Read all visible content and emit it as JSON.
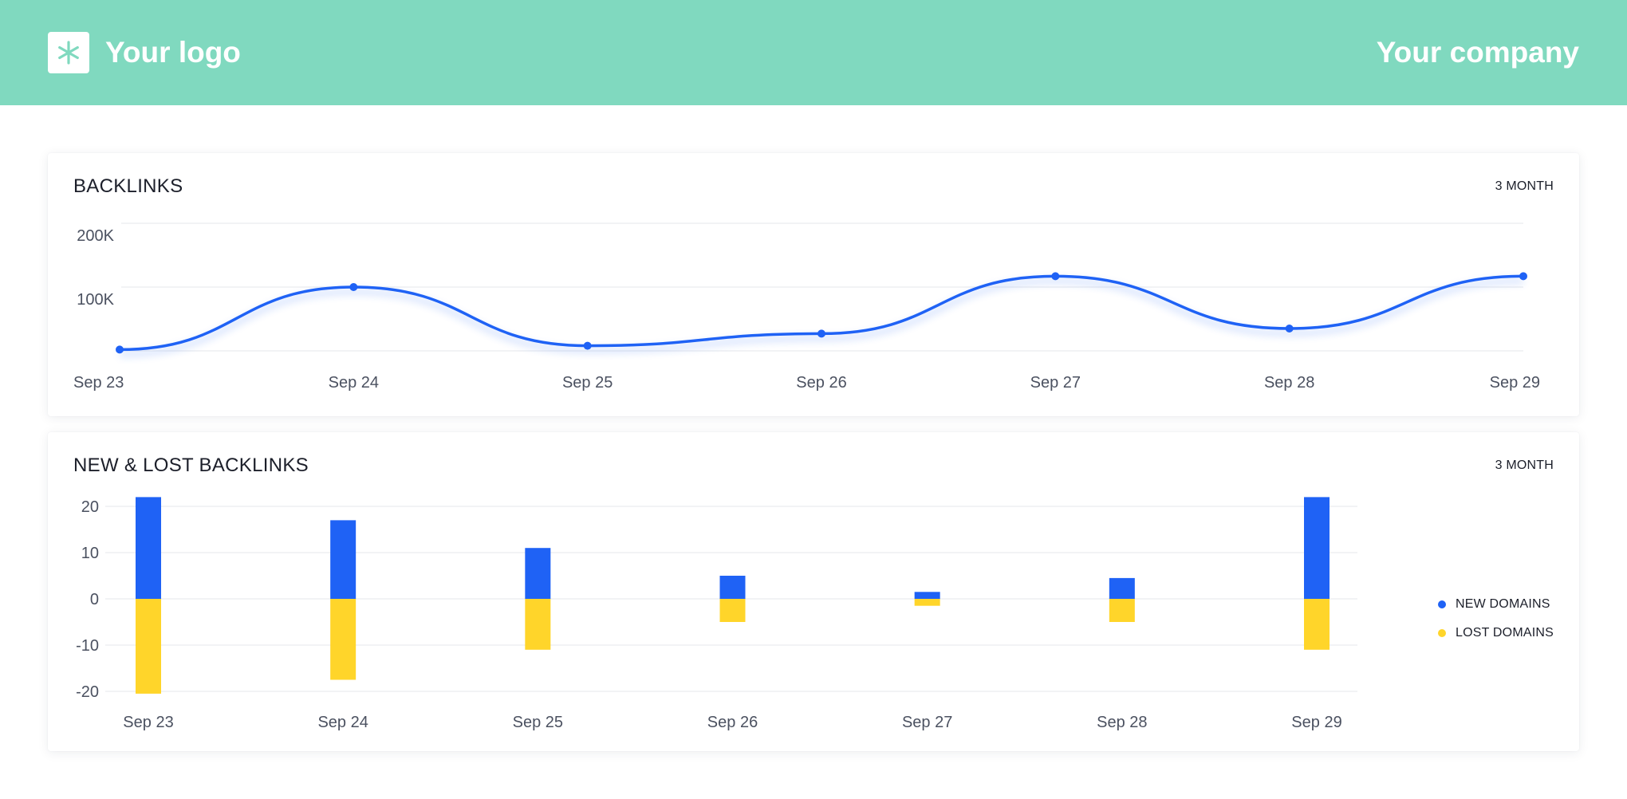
{
  "header": {
    "logo_label": "Your logo",
    "company_label": "Your company",
    "logo_icon": "asterisk-icon",
    "background_color": "#80d9bf"
  },
  "colors": {
    "line": "#1f62f5",
    "new": "#1f62f5",
    "lost": "#ffd52a",
    "grid": "#eeeff2"
  },
  "chart_data": [
    {
      "type": "line",
      "title": "BACKLINKS",
      "range_label": "3 MONTH",
      "categories": [
        "Sep 23",
        "Sep 24",
        "Sep 25",
        "Sep 26",
        "Sep 27",
        "Sep 28",
        "Sep 29"
      ],
      "values": [
        2000,
        100000,
        8000,
        27000,
        117000,
        35000,
        117000
      ],
      "ylim": [
        0,
        200000
      ],
      "y_ticks": [
        {
          "value": 200000,
          "label": "200K"
        },
        {
          "value": 100000,
          "label": "100K"
        }
      ],
      "grid": true
    },
    {
      "type": "bar",
      "title": "NEW & LOST BACKLINKS",
      "range_label": "3 MONTH",
      "categories": [
        "Sep 23",
        "Sep 24",
        "Sep 25",
        "Sep 26",
        "Sep 27",
        "Sep 28",
        "Sep 29"
      ],
      "series": [
        {
          "name": "NEW DOMAINS",
          "values": [
            22,
            17,
            11,
            5,
            1.5,
            4.5,
            22
          ]
        },
        {
          "name": "LOST DOMAINS",
          "values": [
            -20.5,
            -17.5,
            -11,
            -5,
            -1.5,
            -5,
            -11
          ]
        }
      ],
      "ylim": [
        -20,
        20
      ],
      "y_ticks": [
        {
          "value": 20,
          "label": "20"
        },
        {
          "value": 10,
          "label": "10"
        },
        {
          "value": 0,
          "label": "0"
        },
        {
          "value": -10,
          "label": "-10"
        },
        {
          "value": -20,
          "label": "-20"
        }
      ],
      "legend_position": "right",
      "grid": true
    }
  ]
}
